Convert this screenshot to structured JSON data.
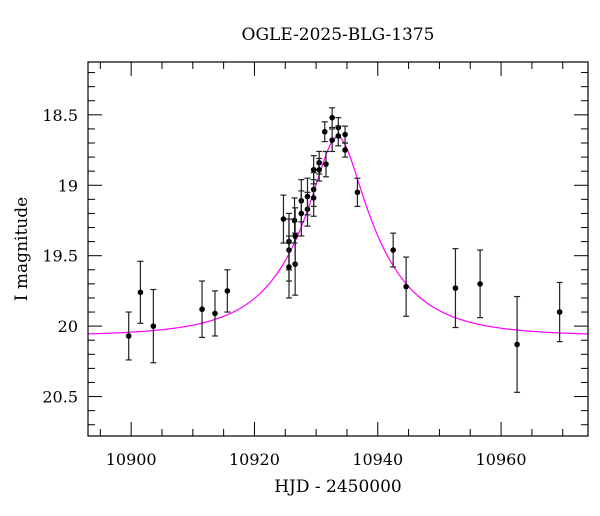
{
  "chart_data": {
    "type": "scatter",
    "title": "OGLE-2025-BLG-1375",
    "xlabel": "HJD - 2450000",
    "ylabel": "I magnitude",
    "xlim": [
      10893.0,
      10974.1
    ],
    "ylim": [
      18.125,
      20.78
    ],
    "y_inverted": true,
    "grid": false,
    "xticks": [
      10900,
      10920,
      10940,
      10960
    ],
    "xtick_labels": [
      "10900",
      "10920",
      "10940",
      "10960"
    ],
    "x_minor_step": 5,
    "yticks": [
      18.5,
      19,
      19.5,
      20,
      20.5
    ],
    "ytick_labels": [
      "18.5",
      "19",
      "19.5",
      "20",
      "20.5"
    ],
    "y_minor_step": 0.1,
    "series": [
      {
        "kind": "points_with_errorbars",
        "color": "#000000",
        "x": [
          10899.6,
          10901.5,
          10903.6,
          10911.5,
          10913.6,
          10915.6,
          10924.7,
          10925.6,
          10925.6,
          10925.6,
          10926.6,
          10926.5,
          10926.6,
          10927.6,
          10927.6,
          10928.6,
          10928.6,
          10929.6,
          10929.6,
          10929.6,
          10930.5,
          10930.5,
          10931.6,
          10931.4,
          10932.6,
          10932.6,
          10933.6,
          10933.6,
          10934.7,
          10934.7,
          10936.7,
          10942.5,
          10944.6,
          10952.6,
          10956.6,
          10962.6,
          10969.5
        ],
        "y": [
          20.07,
          19.76,
          20.0,
          19.88,
          19.91,
          19.75,
          19.24,
          19.4,
          19.46,
          19.58,
          19.56,
          19.25,
          19.36,
          19.11,
          19.2,
          19.17,
          19.08,
          18.89,
          19.03,
          19.09,
          18.84,
          18.89,
          18.85,
          18.62,
          18.52,
          18.68,
          18.59,
          18.65,
          18.64,
          18.75,
          19.05,
          19.46,
          19.72,
          19.73,
          19.7,
          20.13,
          19.9
        ],
        "err": [
          0.17,
          0.22,
          0.26,
          0.2,
          0.16,
          0.15,
          0.17,
          0.2,
          0.22,
          0.22,
          0.22,
          0.16,
          0.2,
          0.15,
          0.16,
          0.12,
          0.13,
          0.1,
          0.12,
          0.13,
          0.08,
          0.08,
          0.09,
          0.07,
          0.07,
          0.08,
          0.07,
          0.07,
          0.06,
          0.05,
          0.1,
          0.12,
          0.21,
          0.28,
          0.24,
          0.34,
          0.21
        ]
      },
      {
        "kind": "model_curve",
        "color": "#ff00ff",
        "t0": 10933.5,
        "u0": 0.28,
        "tE": 12.7,
        "baseline_mag": 20.07
      }
    ]
  }
}
